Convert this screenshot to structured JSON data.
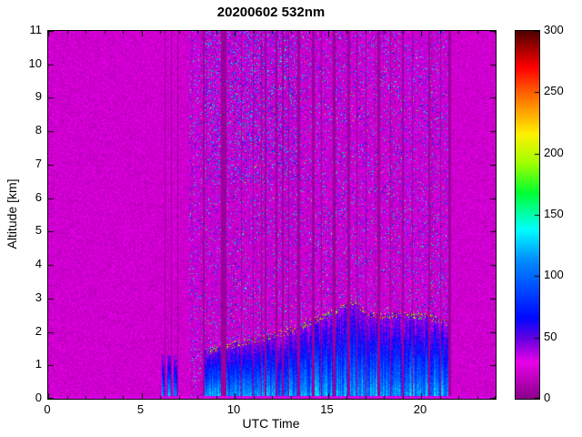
{
  "chart_data": {
    "type": "heatmap",
    "title": "20200602 532nm",
    "xlabel": "UTC Time",
    "ylabel": "Altitude [km]",
    "xlim": [
      0,
      24
    ],
    "ylim": [
      0,
      11
    ],
    "x_major_ticks": [
      0,
      5,
      10,
      15,
      20
    ],
    "x_minor_step": 1,
    "y_ticks": [
      0,
      1,
      2,
      3,
      4,
      5,
      6,
      7,
      8,
      9,
      10,
      11
    ],
    "colorbar": {
      "min": 0,
      "max": 300,
      "ticks": [
        0,
        50,
        100,
        150,
        200,
        250,
        300
      ]
    },
    "colormap_stops": [
      [
        0.0,
        "#8A008A"
      ],
      [
        0.1,
        "#E800E8"
      ],
      [
        0.16,
        "#6A00E0"
      ],
      [
        0.22,
        "#0008FF"
      ],
      [
        0.38,
        "#0090FF"
      ],
      [
        0.46,
        "#00FFFF"
      ],
      [
        0.56,
        "#00FF30"
      ],
      [
        0.64,
        "#A0FF00"
      ],
      [
        0.72,
        "#FFF000"
      ],
      [
        0.82,
        "#FF7000"
      ],
      [
        0.9,
        "#FF0000"
      ],
      [
        1.0,
        "#500000"
      ]
    ],
    "background_value_range": [
      12,
      32
    ],
    "noise_region": {
      "t_start": 7.55,
      "t_end": 21.6,
      "density": 0.09,
      "high_alt_density": 0.18,
      "dense_t": [
        8.4,
        13.6
      ],
      "dense_alt_above": 6.5,
      "value_range": [
        42,
        170
      ],
      "rare_bright_prob": 0.004
    },
    "gaps": [
      [
        6.26,
        6.31
      ],
      [
        6.58,
        6.63
      ],
      [
        6.92,
        6.97
      ],
      [
        8.28,
        8.37
      ],
      [
        9.27,
        9.57
      ],
      [
        10.32,
        10.4
      ],
      [
        10.96,
        11.04
      ],
      [
        11.4,
        11.45
      ],
      [
        11.63,
        11.71
      ],
      [
        12.21,
        12.31
      ],
      [
        12.56,
        12.61
      ],
      [
        12.87,
        12.95
      ],
      [
        13.37,
        13.49
      ],
      [
        14.17,
        14.27
      ],
      [
        14.63,
        14.68
      ],
      [
        15.29,
        15.41
      ],
      [
        16.07,
        16.19
      ],
      [
        16.52,
        16.6
      ],
      [
        17.03,
        17.08
      ],
      [
        17.67,
        17.8
      ],
      [
        18.33,
        18.38
      ],
      [
        18.97,
        19.07
      ],
      [
        19.53,
        19.58
      ],
      [
        20.37,
        20.5
      ],
      [
        21.03,
        21.08
      ],
      [
        21.47,
        21.6
      ]
    ],
    "boundary_layer": {
      "segments": [
        [
          6.08,
          6.26
        ],
        [
          6.4,
          6.58
        ],
        [
          6.72,
          6.92
        ]
      ],
      "segment_top": 1.3,
      "main_start": 8.37,
      "main_end": 21.47,
      "top_profile": [
        [
          8.37,
          1.45
        ],
        [
          9.0,
          1.55
        ],
        [
          9.6,
          1.62
        ],
        [
          10.5,
          1.75
        ],
        [
          11.3,
          1.82
        ],
        [
          12.0,
          1.95
        ],
        [
          12.8,
          2.05
        ],
        [
          13.5,
          2.2
        ],
        [
          14.3,
          2.4
        ],
        [
          15.0,
          2.55
        ],
        [
          15.7,
          2.75
        ],
        [
          16.2,
          3.0
        ],
        [
          16.6,
          2.85
        ],
        [
          17.2,
          2.6
        ],
        [
          18.0,
          2.5
        ],
        [
          18.8,
          2.6
        ],
        [
          19.6,
          2.55
        ],
        [
          20.3,
          2.5
        ],
        [
          21.0,
          2.4
        ],
        [
          21.47,
          2.3
        ]
      ]
    },
    "clouds": {
      "t_start": 8.55,
      "t_end": 21.4,
      "density": 0.22,
      "value_range": [
        150,
        300
      ]
    },
    "surface_line": {
      "alt": 0.09,
      "value": 28
    }
  }
}
